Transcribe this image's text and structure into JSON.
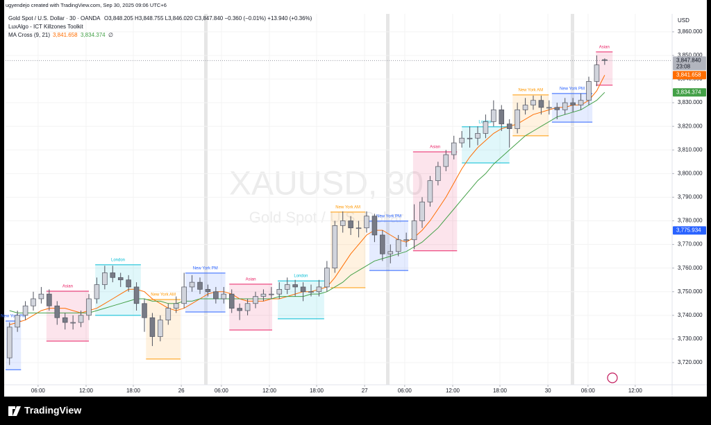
{
  "header": {
    "credit": "ugyendejo created with TradingView.com, Sep 30, 2025 09:06 UTC+6",
    "symbol": "Gold Spot / U.S. Dollar · 30 · OANDA",
    "ohlc": "O3,848.205 H3,848.755 L3,846.020 C3,847.840 −0.360 (−0.01%) +13.940 (+0.36%)",
    "indicator": "LuxAlgo - ICT Killzones Toolkit",
    "ma_name": "MA Cross (9, 21)",
    "ma_fast_value": "3,841.658",
    "ma_slow_value": "3,834.374",
    "ma_extra": "∅",
    "currency": "USD",
    "watermark_symbol": "XAUUSD, 30",
    "watermark_name": "Gold Spot / U.S. Dollar",
    "brand": "TradingView"
  },
  "chart_data": {
    "type": "candlestick",
    "up_color": "#d1d4dc",
    "down_color": "#787b86",
    "outline_color": "#50535e",
    "x": [
      1,
      3,
      5,
      7,
      9,
      11,
      13,
      15,
      17,
      19,
      21,
      23,
      25,
      27,
      29,
      31,
      33,
      35,
      37,
      39,
      41,
      43,
      45,
      47,
      49,
      51,
      53,
      55,
      57,
      59,
      61,
      63,
      65,
      67,
      69,
      71,
      73,
      75,
      77,
      79,
      81,
      83,
      85,
      87,
      89,
      91,
      93,
      95,
      97,
      99,
      101,
      103,
      105,
      107,
      109,
      111,
      113,
      115,
      117,
      119,
      121,
      123,
      125,
      127,
      129,
      131,
      133,
      135,
      137,
      139,
      141,
      143,
      145,
      147,
      149,
      151
    ],
    "open": [
      3722,
      3735,
      3740,
      3744,
      3747,
      3749,
      3744,
      3739,
      3737,
      3737,
      3740,
      3747,
      3753,
      3758,
      3756,
      3755,
      3752,
      3745,
      3739,
      3731,
      3738,
      3743,
      3745,
      3752,
      3754,
      3751,
      3750,
      3747,
      3749,
      3743,
      3742,
      3745,
      3748,
      3749,
      3749,
      3751,
      3753,
      3752,
      3750,
      3750,
      3752,
      3760,
      3778,
      3780,
      3777,
      3777,
      3782,
      3774,
      3766,
      3767,
      3772,
      3772,
      3780,
      3788,
      3797,
      3803,
      3808,
      3813,
      3815,
      3815,
      3817,
      3822,
      3827,
      3821,
      3819,
      3827,
      3829,
      3831,
      3828,
      3828,
      3827,
      3830,
      3829,
      3831,
      3839,
      3848.205
    ],
    "high": [
      3737,
      3742,
      3746,
      3750,
      3752,
      3751,
      3746,
      3741,
      3740,
      3742,
      3749,
      3756,
      3761,
      3761,
      3758,
      3757,
      3754,
      3747,
      3741,
      3740,
      3745,
      3748,
      3758,
      3757,
      3756,
      3753,
      3752,
      3752,
      3751,
      3745,
      3747,
      3750,
      3751,
      3752,
      3754,
      3756,
      3755,
      3754,
      3753,
      3755,
      3763,
      3780,
      3784,
      3782,
      3780,
      3784,
      3783,
      3776,
      3770,
      3774,
      3775,
      3787,
      3790,
      3799,
      3805,
      3810,
      3816,
      3818,
      3820,
      3820,
      3825,
      3831,
      3829,
      3823,
      3830,
      3832,
      3833,
      3833,
      3831,
      3830,
      3832,
      3832,
      3834,
      3841,
      3850,
      3848.755
    ],
    "low": [
      3719,
      3733,
      3738,
      3742,
      3745,
      3742,
      3736,
      3734,
      3734,
      3735,
      3738,
      3745,
      3751,
      3754,
      3752,
      3750,
      3742,
      3733,
      3727,
      3729,
      3736,
      3741,
      3743,
      3750,
      3749,
      3748,
      3745,
      3745,
      3741,
      3738,
      3740,
      3743,
      3746,
      3747,
      3747,
      3749,
      3748,
      3746,
      3748,
      3748,
      3750,
      3758,
      3775,
      3774,
      3773,
      3775,
      3771,
      3763,
      3762,
      3765,
      3769,
      3768,
      3777,
      3786,
      3795,
      3801,
      3806,
      3811,
      3811,
      3812,
      3815,
      3820,
      3818,
      3811,
      3817,
      3825,
      3827,
      3825,
      3825,
      3823,
      3825,
      3826,
      3827,
      3829,
      3837,
      3846.02
    ],
    "close": [
      3735,
      3740,
      3744,
      3747,
      3749,
      3744,
      3739,
      3737,
      3737,
      3740,
      3747,
      3753,
      3758,
      3756,
      3755,
      3752,
      3745,
      3739,
      3731,
      3738,
      3743,
      3745,
      3752,
      3754,
      3751,
      3750,
      3747,
      3749,
      3743,
      3742,
      3745,
      3748,
      3749,
      3749,
      3751,
      3753,
      3752,
      3750,
      3750,
      3752,
      3760,
      3778,
      3780,
      3777,
      3777,
      3782,
      3774,
      3766,
      3767,
      3772,
      3772,
      3780,
      3788,
      3797,
      3803,
      3808,
      3813,
      3815,
      3815,
      3817,
      3822,
      3827,
      3821,
      3819,
      3827,
      3829,
      3831,
      3828,
      3828,
      3827,
      3830,
      3829,
      3831,
      3839,
      3846,
      3847.84
    ],
    "ma": [
      {
        "color": "#ff6d00",
        "values": [
          3736,
          3737,
          3738,
          3740,
          3742,
          3743,
          3743,
          3743,
          3742,
          3741,
          3742,
          3743,
          3745,
          3747,
          3749,
          3751,
          3751,
          3750,
          3747,
          3745,
          3743,
          3742,
          3743,
          3745,
          3747,
          3749,
          3750,
          3750,
          3749,
          3747,
          3746,
          3746,
          3746,
          3747,
          3747,
          3748,
          3749,
          3750,
          3750,
          3751,
          3752,
          3756,
          3761,
          3766,
          3770,
          3774,
          3776,
          3776,
          3774,
          3772,
          3771,
          3773,
          3776,
          3780,
          3785,
          3790,
          3796,
          3802,
          3807,
          3811,
          3814,
          3817,
          3819,
          3820,
          3821,
          3823,
          3825,
          3826,
          3827,
          3828,
          3828,
          3829,
          3829,
          3831,
          3835,
          3841.658
        ]
      },
      {
        "color": "#43a047",
        "values": [
          3742,
          3741,
          3741,
          3741,
          3741,
          3741,
          3741,
          3741,
          3741,
          3741,
          3741,
          3742,
          3743,
          3744,
          3745,
          3746,
          3747,
          3747,
          3746,
          3746,
          3745,
          3745,
          3746,
          3746,
          3747,
          3747,
          3747,
          3747,
          3747,
          3747,
          3747,
          3747,
          3747,
          3747,
          3748,
          3748,
          3748,
          3748,
          3749,
          3749,
          3750,
          3752,
          3754,
          3757,
          3759,
          3761,
          3763,
          3764,
          3765,
          3766,
          3767,
          3769,
          3771,
          3774,
          3777,
          3781,
          3785,
          3789,
          3793,
          3797,
          3800,
          3804,
          3807,
          3810,
          3813,
          3816,
          3818,
          3820,
          3822,
          3824,
          3825,
          3826,
          3827,
          3829,
          3831,
          3834.374
        ]
      }
    ],
    "killzones": [
      {
        "label": "New York PM",
        "color": "#2962ff",
        "x": [
          0,
          3.9
        ],
        "y": [
          3717,
          3737.6
        ]
      },
      {
        "label": "Asian",
        "color": "#e91e63",
        "x": [
          10.3,
          21
        ],
        "y": [
          3729.1,
          3750.2
        ]
      },
      {
        "label": "London",
        "color": "#00bcd4",
        "x": [
          22.6,
          34.1
        ],
        "y": [
          3740,
          3761.4
        ]
      },
      {
        "label": "New York AM",
        "color": "#ff9800",
        "x": [
          35.4,
          44.1
        ],
        "y": [
          3721.5,
          3746.7
        ]
      },
      {
        "label": "New York PM",
        "color": "#2962ff",
        "x": [
          45.3,
          55.4
        ],
        "y": [
          3741.4,
          3757.9
        ]
      },
      {
        "label": "Asian",
        "color": "#e91e63",
        "x": [
          56.4,
          67.2
        ],
        "y": [
          3733.8,
          3753.2
        ]
      },
      {
        "label": "London",
        "color": "#00bcd4",
        "x": [
          68.6,
          80.3
        ],
        "y": [
          3738.5,
          3754.6
        ]
      },
      {
        "label": "New York AM",
        "color": "#ff9800",
        "x": [
          81.9,
          90.7
        ],
        "y": [
          3751.7,
          3783.7
        ]
      },
      {
        "label": "New York PM",
        "color": "#2962ff",
        "x": [
          91.7,
          101.5
        ],
        "y": [
          3759,
          3779.9
        ]
      },
      {
        "label": "Asian",
        "color": "#e91e63",
        "x": [
          102.7,
          113.8
        ],
        "y": [
          3767.3,
          3809.2
        ]
      },
      {
        "label": "London",
        "color": "#00bcd4",
        "x": [
          115,
          127
        ],
        "y": [
          3804.5,
          3819.8
        ]
      },
      {
        "label": "New York AM",
        "color": "#ff9800",
        "x": [
          127.8,
          136.9
        ],
        "y": [
          3816,
          3833.3
        ]
      },
      {
        "label": "New York PM",
        "color": "#2962ff",
        "x": [
          137.7,
          147.9
        ],
        "y": [
          3821.8,
          3833.9
        ]
      },
      {
        "label": "Asian",
        "color": "#e91e63",
        "x": [
          148.8,
          153
        ],
        "y": [
          3837.4,
          3851.5
        ]
      }
    ],
    "price_badges": [
      {
        "value": 3847.84,
        "label": "3,847.840",
        "countdown": "23:08",
        "color": "#b2b5be"
      },
      {
        "value": 3841.658,
        "label": "3,841.658",
        "color": "#ff6d00"
      },
      {
        "value": 3834.374,
        "label": "3,834.374",
        "color": "#43a047"
      },
      {
        "value": 3775.934,
        "label": "3,775.934",
        "color": "#2962ff"
      }
    ],
    "xlim": [
      0,
      168
    ],
    "xticks": [
      {
        "value": 8.2,
        "label": "06:00"
      },
      {
        "value": 20.3,
        "label": "12:00"
      },
      {
        "value": 32.2,
        "label": "18:00"
      },
      {
        "value": 44.3,
        "label": "26"
      },
      {
        "value": 54.4,
        "label": "06:00"
      },
      {
        "value": 66.5,
        "label": "12:00"
      },
      {
        "value": 78.4,
        "label": "18:00"
      },
      {
        "value": 90.5,
        "label": "27"
      },
      {
        "value": 100.6,
        "label": "06:00"
      },
      {
        "value": 112.7,
        "label": "12:00"
      },
      {
        "value": 124.6,
        "label": "18:00"
      },
      {
        "value": 136.7,
        "label": "30"
      },
      {
        "value": 146.8,
        "label": "06:00"
      },
      {
        "value": 158.7,
        "label": "12:00"
      }
    ],
    "ylim": [
      3710.6,
      3867.6
    ],
    "yticks": [
      {
        "value": 3860,
        "label": "3,860.000"
      },
      {
        "value": 3850,
        "label": "3,850.000"
      },
      {
        "value": 3840,
        "label": "3,840.000"
      },
      {
        "value": 3830,
        "label": "3,830.000"
      },
      {
        "value": 3820,
        "label": "3,820.000"
      },
      {
        "value": 3810,
        "label": "3,810.000"
      },
      {
        "value": 3800,
        "label": "3,800.000"
      },
      {
        "value": 3790,
        "label": "3,790.000"
      },
      {
        "value": 3780,
        "label": "3,780.000"
      },
      {
        "value": 3770,
        "label": "3,770.000"
      },
      {
        "value": 3760,
        "label": "3,760.000"
      },
      {
        "value": 3750,
        "label": "3,750.000"
      },
      {
        "value": 3740,
        "label": "3,740.000"
      },
      {
        "value": 3730,
        "label": "3,730.000"
      },
      {
        "value": 3720,
        "label": "3,720.000"
      }
    ]
  }
}
